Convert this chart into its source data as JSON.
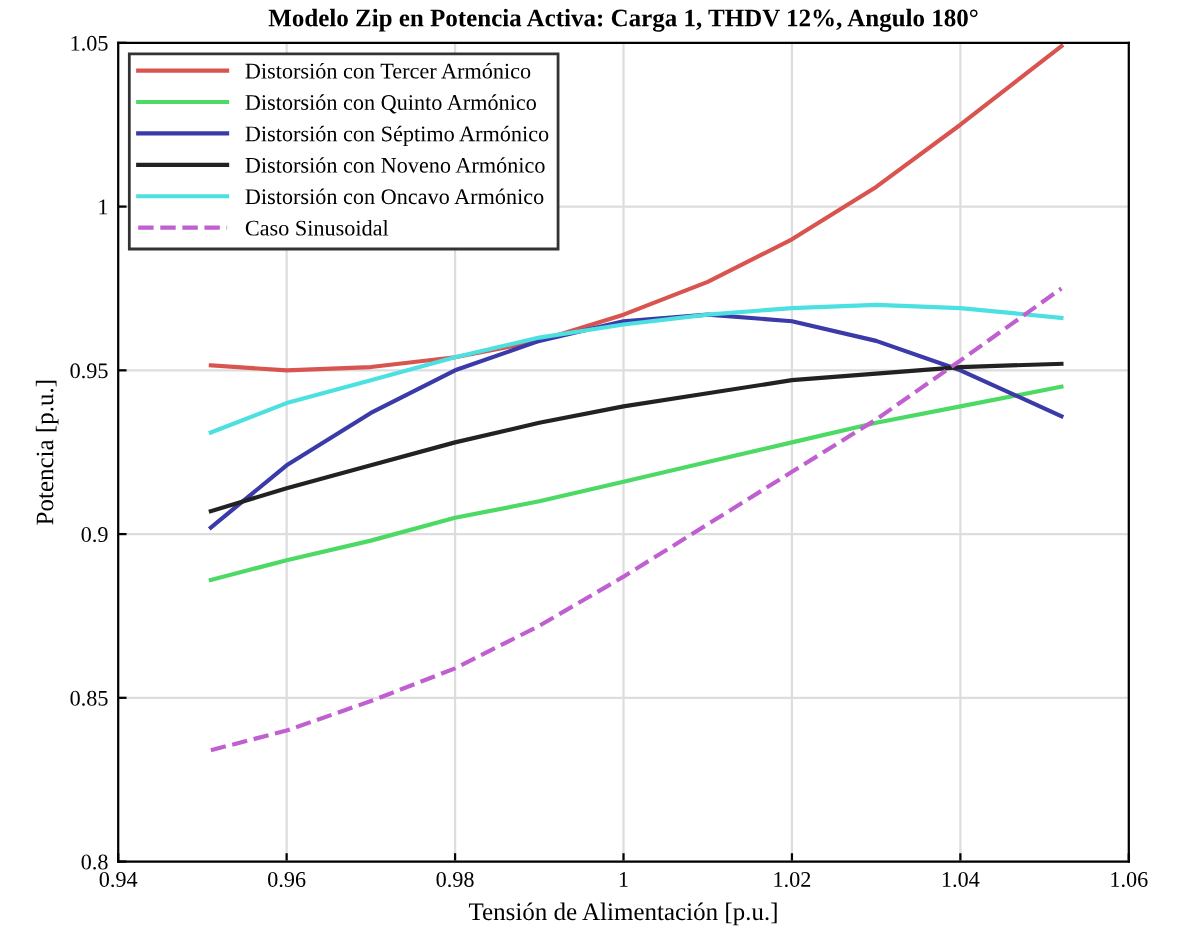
{
  "chart_data": {
    "type": "line",
    "title": "Modelo Zip en Potencia Activa: Carga 1, THDV 12%, Angulo 180°",
    "xlabel": "Tensión de Alimentación [p.u.]",
    "ylabel": "Potencia [p.u.]",
    "x": [
      0.951,
      0.96,
      0.97,
      0.98,
      0.99,
      1.0,
      1.01,
      1.02,
      1.03,
      1.04,
      1.052
    ],
    "series": [
      {
        "name": "Distorsión con Tercer Armónico",
        "color": "#d9534f",
        "values": [
          0.9515,
          0.95,
          0.951,
          0.954,
          0.959,
          0.967,
          0.977,
          0.99,
          1.006,
          1.025,
          1.049
        ]
      },
      {
        "name": "Distorsión con Quinto Armónico",
        "color": "#4cd964",
        "values": [
          0.886,
          0.892,
          0.898,
          0.905,
          0.91,
          0.916,
          0.922,
          0.928,
          0.934,
          0.939,
          0.945
        ]
      },
      {
        "name": "Distorsión con Séptimo Armónico",
        "color": "#3a3aa8",
        "values": [
          0.902,
          0.921,
          0.937,
          0.95,
          0.959,
          0.965,
          0.967,
          0.965,
          0.959,
          0.95,
          0.936
        ]
      },
      {
        "name": "Distorsión con Noveno Armónico",
        "color": "#222222",
        "values": [
          0.907,
          0.914,
          0.921,
          0.928,
          0.934,
          0.939,
          0.943,
          0.947,
          0.949,
          0.951,
          0.952
        ]
      },
      {
        "name": "Distorsión con Oncavo Armónico",
        "color": "#4de0e0",
        "values": [
          0.931,
          0.94,
          0.947,
          0.954,
          0.96,
          0.964,
          0.967,
          0.969,
          0.97,
          0.969,
          0.966
        ]
      },
      {
        "name": "Caso Sinusoidal",
        "color": "#c060d0",
        "line_style": "dashed",
        "values": [
          0.834,
          0.84,
          0.849,
          0.859,
          0.872,
          0.887,
          0.903,
          0.919,
          0.935,
          0.953,
          0.975
        ]
      }
    ],
    "xlim": [
      0.94,
      1.06
    ],
    "ylim": [
      0.8,
      1.05
    ],
    "xticks": [
      0.94,
      0.96,
      0.98,
      {
        "value": 1.0,
        "label": "1"
      },
      1.02,
      1.04,
      1.06
    ],
    "yticks": [
      {
        "value": 0.8,
        "label": "0.8"
      },
      0.85,
      {
        "value": 0.9,
        "label": "0.9"
      },
      0.95,
      {
        "value": 1.0,
        "label": "1"
      },
      1.05
    ],
    "grid": true,
    "legend": "top left",
    "line_style": "solid",
    "marker": "none"
  }
}
